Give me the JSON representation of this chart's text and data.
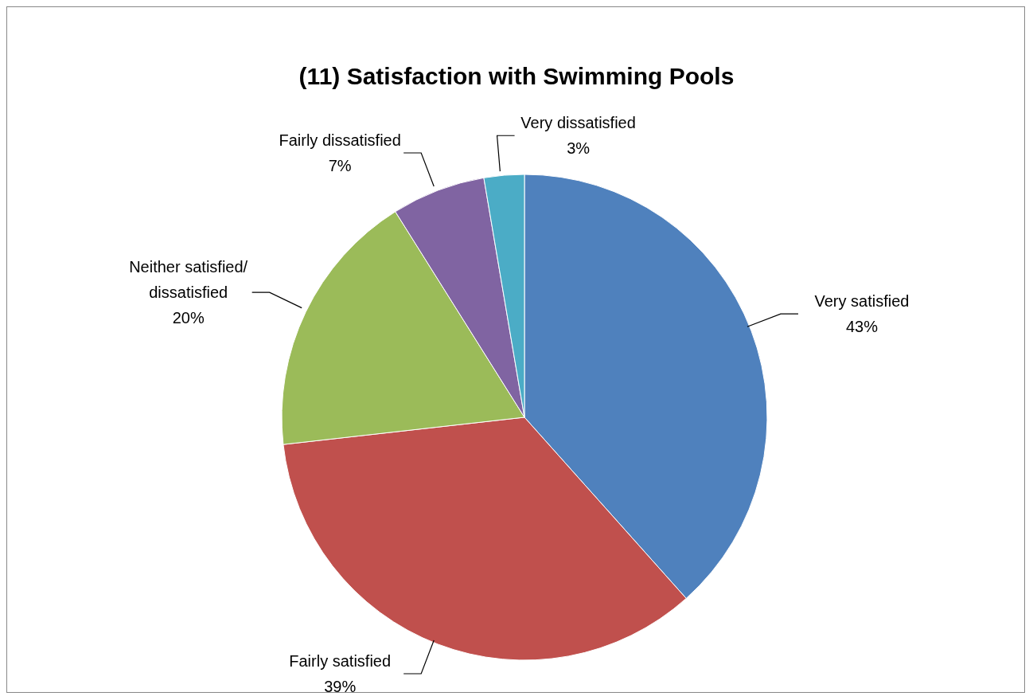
{
  "chart_data": {
    "type": "pie",
    "title": "(11) Satisfaction with Swimming Pools",
    "categories": [
      "Very satisfied",
      "Fairly satisfied",
      "Neither satisfied/ dissatisfied",
      "Fairly dissatisfied",
      "Very dissatisfied"
    ],
    "values": [
      43,
      39,
      20,
      7,
      3
    ],
    "colors": [
      "#4f81bd",
      "#c0504d",
      "#9bbb59",
      "#8064a2",
      "#4bacc6"
    ],
    "value_labels": [
      "43%",
      "39%",
      "20%",
      "7%",
      "3%"
    ]
  }
}
